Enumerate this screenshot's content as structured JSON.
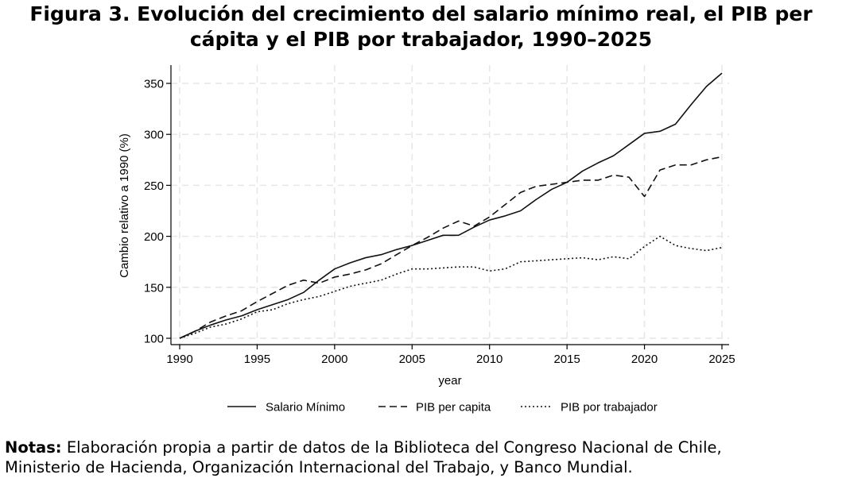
{
  "figure": {
    "title_line1": "Figura 3. Evolución del crecimiento del salario mínimo real, el PIB per",
    "title_line2": "cápita y el PIB por trabajador, 1990–2025"
  },
  "notes": {
    "label": "Notas:",
    "line1": "Elaboración propia a partir de datos de la Biblioteca del Congreso Nacional de Chile,",
    "line2": "Ministerio de Hacienda, Organización Internacional del Trabajo, y Banco Mundial."
  },
  "colors": {
    "line": "#111111",
    "grid": "#e6e6e6",
    "axis": "#000000"
  },
  "chart_data": {
    "type": "line",
    "title": "",
    "xlabel": "year",
    "ylabel": "Cambio relativo a 1990 (%)",
    "xlim": [
      1990,
      2025
    ],
    "ylim": [
      100,
      360
    ],
    "xticks": [
      1990,
      1995,
      2000,
      2005,
      2010,
      2015,
      2020,
      2025
    ],
    "yticks": [
      100,
      150,
      200,
      250,
      300,
      350
    ],
    "grid": true,
    "legend_position": "bottom",
    "x": [
      1990,
      1991,
      1992,
      1993,
      1994,
      1995,
      1996,
      1997,
      1998,
      1999,
      2000,
      2001,
      2002,
      2003,
      2004,
      2005,
      2006,
      2007,
      2008,
      2009,
      2010,
      2011,
      2012,
      2013,
      2014,
      2015,
      2016,
      2017,
      2018,
      2019,
      2020,
      2021,
      2022,
      2023,
      2024,
      2025
    ],
    "series": [
      {
        "name": "Salario Mínimo",
        "style": "solid",
        "values": [
          100,
          107,
          113,
          118,
          122,
          128,
          133,
          138,
          145,
          157,
          168,
          174,
          179,
          182,
          187,
          191,
          196,
          201,
          201,
          209,
          216,
          220,
          225,
          236,
          246,
          253,
          264,
          272,
          279,
          290,
          301,
          303,
          310,
          329,
          347,
          360
        ]
      },
      {
        "name": "PIB per capita",
        "style": "dashed",
        "values": [
          100,
          107,
          116,
          122,
          127,
          136,
          144,
          152,
          157,
          154,
          160,
          163,
          167,
          173,
          182,
          191,
          199,
          208,
          215,
          210,
          219,
          231,
          243,
          249,
          251,
          253,
          255,
          255,
          260,
          258,
          239,
          265,
          270,
          270,
          275,
          278
        ]
      },
      {
        "name": "PIB por trabajador",
        "style": "dotted",
        "values": [
          100,
          105,
          111,
          114,
          119,
          126,
          128,
          134,
          138,
          141,
          146,
          151,
          154,
          157,
          163,
          168,
          168,
          169,
          170,
          170,
          166,
          168,
          175,
          176,
          177,
          178,
          179,
          177,
          180,
          178,
          190,
          200,
          191,
          188,
          186,
          189
        ]
      }
    ]
  }
}
